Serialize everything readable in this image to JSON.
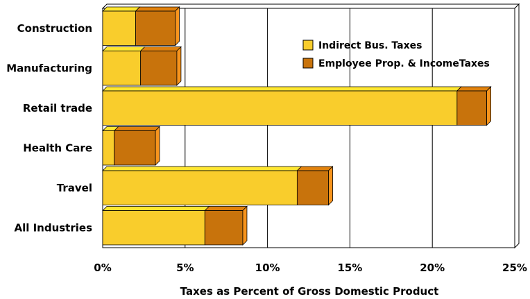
{
  "chart_data": {
    "type": "bar",
    "orientation": "horizontal",
    "stacked": true,
    "style": "3d",
    "categories": [
      "Construction",
      "Manufacturing",
      "Retail trade",
      "Health Care",
      "Travel",
      "All Industries"
    ],
    "series": [
      {
        "name": "Indirect Bus. Taxes",
        "values": [
          2.0,
          2.3,
          21.5,
          0.7,
          11.8,
          6.2
        ],
        "color": "#f9cd2c"
      },
      {
        "name": "Employee Prop. & IncomeTaxes",
        "values": [
          2.4,
          2.2,
          1.8,
          2.5,
          1.9,
          2.3
        ],
        "color": "#c8730c"
      }
    ],
    "title": "",
    "xlabel": "Taxes as Percent of Gross Domestic Product",
    "ylabel": "",
    "xlim": [
      0,
      25
    ],
    "xticks": [
      0,
      5,
      10,
      15,
      20,
      25
    ],
    "xtick_labels": [
      "0%",
      "5%",
      "10%",
      "15%",
      "20%",
      "25%"
    ],
    "grid": "vertical",
    "legend_position": "top-right"
  }
}
